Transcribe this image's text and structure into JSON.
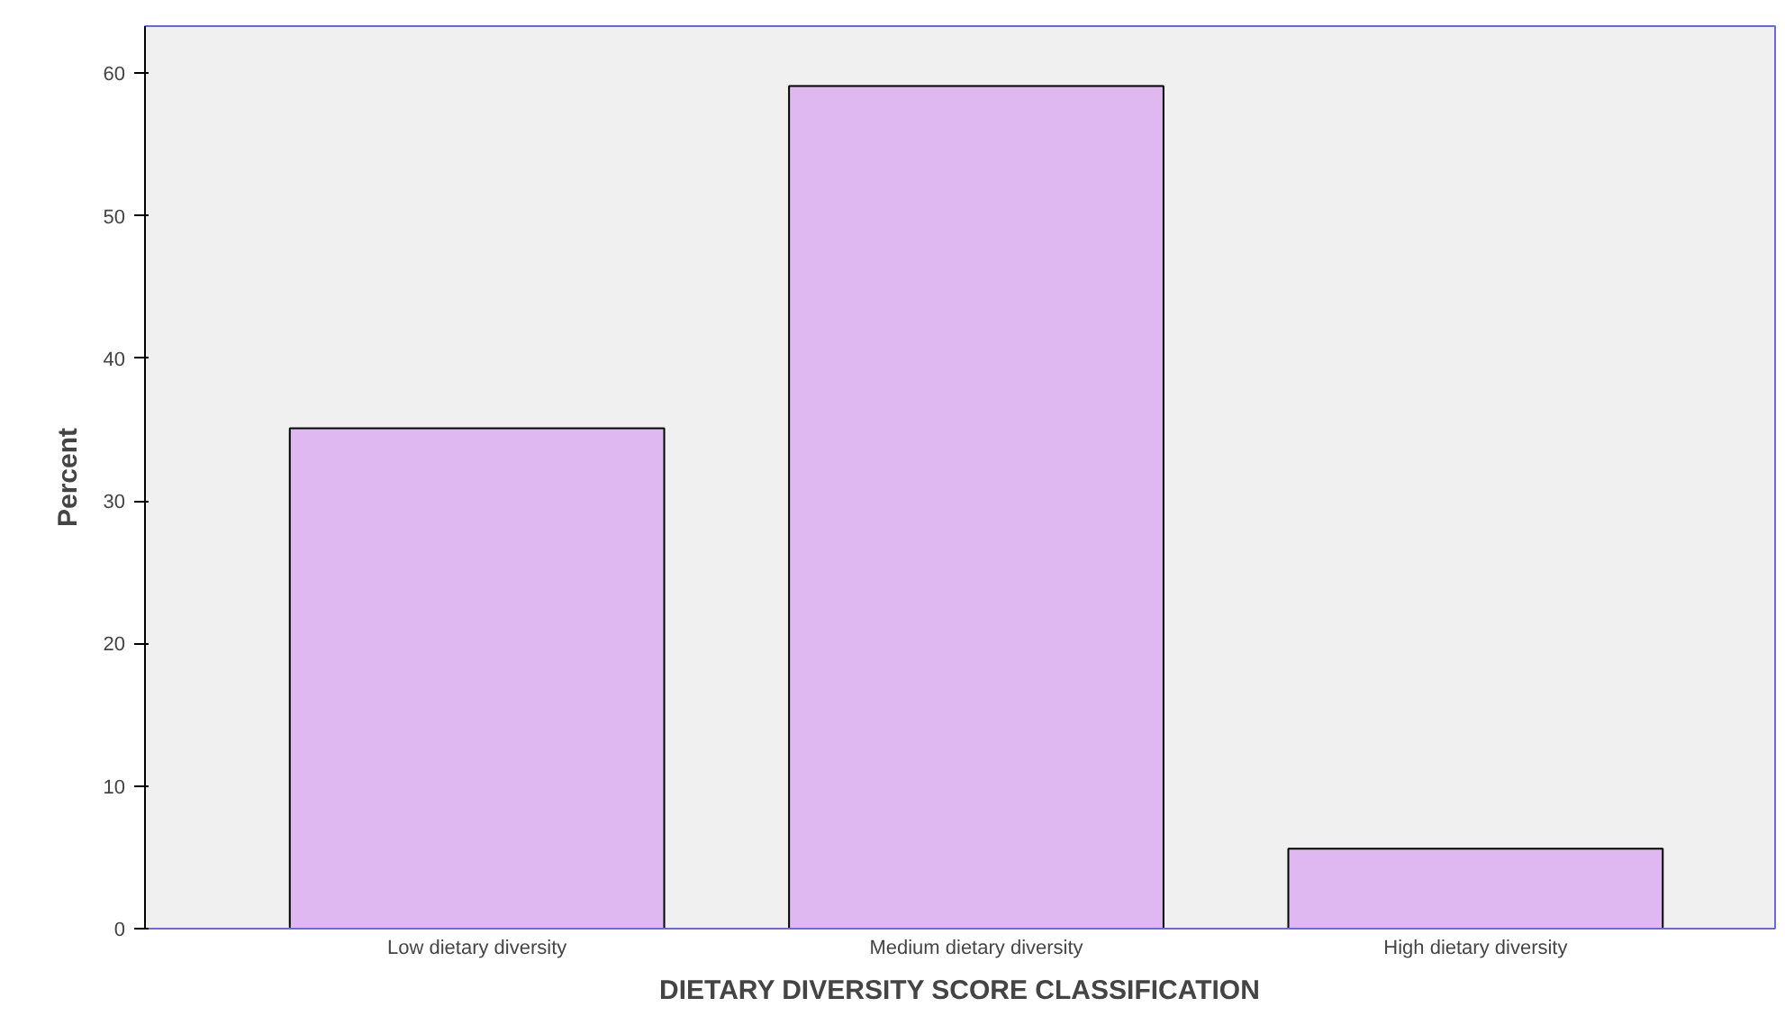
{
  "chart_data": {
    "type": "bar",
    "xlabel": "DIETARY DIVERSITY SCORE CLASSIFICATION",
    "ylabel": "Percent",
    "categories": [
      "Low dietary diversity",
      "Medium dietary diversity",
      "High dietary diversity"
    ],
    "values": [
      35.1,
      59.1,
      5.6
    ],
    "color": "#dfb8f2",
    "ylim": [
      0,
      63.3
    ],
    "yticks": [
      0,
      10,
      20,
      30,
      40,
      50,
      60
    ],
    "grid": false
  }
}
